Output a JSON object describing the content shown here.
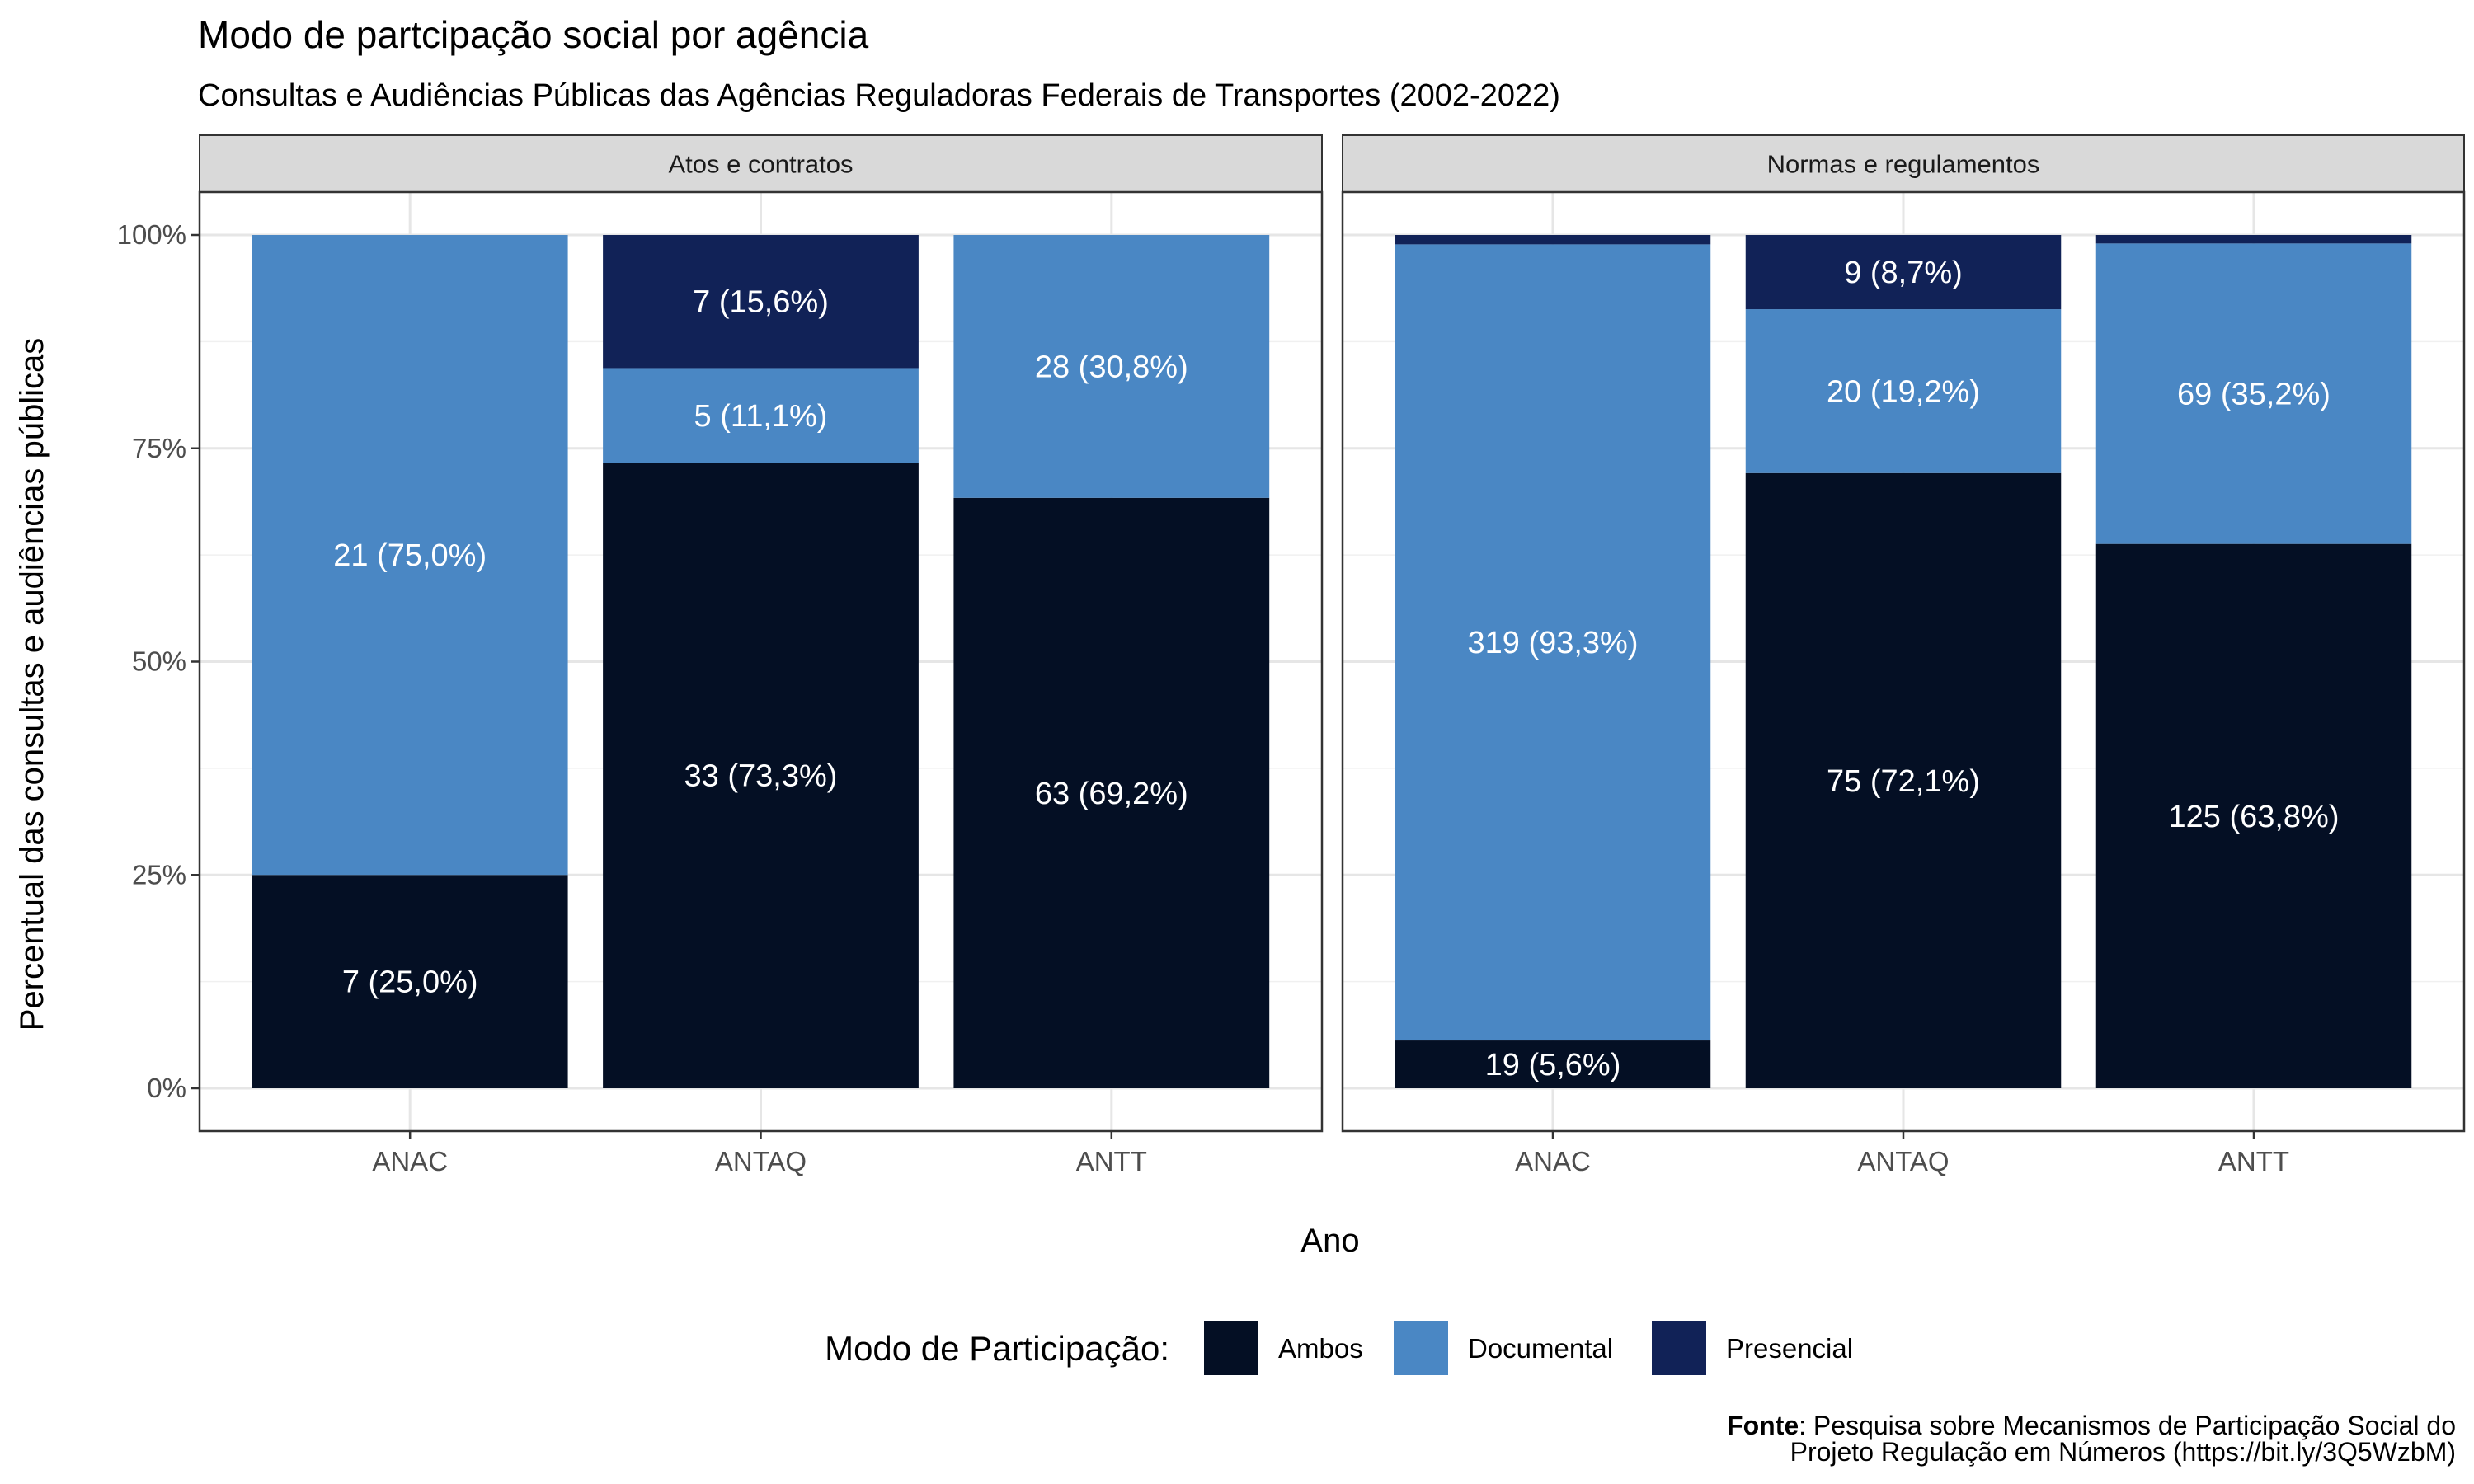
{
  "chart_data": {
    "type": "bar",
    "stacked": true,
    "normalized": true,
    "title": "Modo de partcipação social por agência",
    "subtitle": "Consultas e Audiências Públicas das Agências Reguladoras Federais de Transportes (2002-2022)",
    "xlabel": "Ano",
    "ylabel": "Percentual das consultas e audiências públicas",
    "ylim": [
      0,
      1
    ],
    "y_ticks": [
      {
        "value": 0,
        "label": "0%"
      },
      {
        "value": 0.25,
        "label": "25%"
      },
      {
        "value": 0.5,
        "label": "50%"
      },
      {
        "value": 0.75,
        "label": "75%"
      },
      {
        "value": 1,
        "label": "100%"
      }
    ],
    "grid": true,
    "legend": {
      "title": "Modo de Participação:",
      "position": "bottom",
      "items": [
        {
          "name": "Ambos",
          "color": "#040f24"
        },
        {
          "name": "Documental",
          "color": "#4a87c4"
        },
        {
          "name": "Presencial",
          "color": "#112257"
        }
      ]
    },
    "categories": [
      "ANAC",
      "ANTAQ",
      "ANTT"
    ],
    "series_order": [
      "Ambos",
      "Documental",
      "Presencial"
    ],
    "panels": [
      {
        "facet": "Atos e contratos",
        "bars": [
          {
            "category": "ANAC",
            "segments": [
              {
                "mode": "Ambos",
                "count": 7,
                "share": 0.25,
                "label": "7 (25,0%)"
              },
              {
                "mode": "Documental",
                "count": 21,
                "share": 0.75,
                "label": "21 (75,0%)"
              }
            ]
          },
          {
            "category": "ANTAQ",
            "segments": [
              {
                "mode": "Ambos",
                "count": 33,
                "share": 0.733,
                "label": "33 (73,3%)"
              },
              {
                "mode": "Documental",
                "count": 5,
                "share": 0.111,
                "label": "5 (11,1%)"
              },
              {
                "mode": "Presencial",
                "count": 7,
                "share": 0.156,
                "label": "7 (15,6%)"
              }
            ]
          },
          {
            "category": "ANTT",
            "segments": [
              {
                "mode": "Ambos",
                "count": 63,
                "share": 0.692,
                "label": "63 (69,2%)"
              },
              {
                "mode": "Documental",
                "count": 28,
                "share": 0.308,
                "label": "28 (30,8%)"
              }
            ]
          }
        ]
      },
      {
        "facet": "Normas e regulamentos",
        "bars": [
          {
            "category": "ANAC",
            "segments": [
              {
                "mode": "Ambos",
                "count": 19,
                "share": 0.056,
                "label": "19 (5,6%)"
              },
              {
                "mode": "Documental",
                "count": 319,
                "share": 0.933,
                "label": "319 (93,3%)"
              },
              {
                "mode": "Presencial",
                "share": 0.011,
                "label": ""
              }
            ]
          },
          {
            "category": "ANTAQ",
            "segments": [
              {
                "mode": "Ambos",
                "count": 75,
                "share": 0.721,
                "label": "75 (72,1%)"
              },
              {
                "mode": "Documental",
                "count": 20,
                "share": 0.192,
                "label": "20 (19,2%)"
              },
              {
                "mode": "Presencial",
                "count": 9,
                "share": 0.087,
                "label": "9 (8,7%)"
              }
            ]
          },
          {
            "category": "ANTT",
            "segments": [
              {
                "mode": "Ambos",
                "count": 125,
                "share": 0.638,
                "label": "125 (63,8%)"
              },
              {
                "mode": "Documental",
                "count": 69,
                "share": 0.352,
                "label": "69 (35,2%)"
              },
              {
                "mode": "Presencial",
                "share": 0.01,
                "label": ""
              }
            ]
          }
        ]
      }
    ]
  },
  "caption": {
    "bold": "Fonte",
    "line1": ": Pesquisa sobre Mecanismos de Participação Social do",
    "line2": "Projeto Regulação em Números (https://bit.ly/3Q5WzbM)"
  }
}
